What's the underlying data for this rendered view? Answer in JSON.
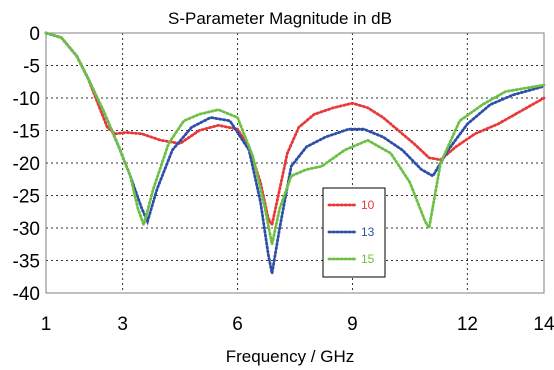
{
  "chart_data": {
    "type": "line",
    "title": "S-Parameter Magnitude in dB",
    "xlabel": "Frequency / GHz",
    "ylabel": "",
    "xlim": [
      1,
      14
    ],
    "ylim": [
      -40,
      0
    ],
    "xticks": [
      1,
      3,
      6,
      9,
      12,
      14
    ],
    "yticks": [
      0,
      -5,
      -10,
      -15,
      -20,
      -25,
      -30,
      -35,
      -40
    ],
    "grid": true,
    "grid_style": "dotted",
    "legend_position": "center-right",
    "series": [
      {
        "name": "10",
        "color": "#e8383a",
        "x": [
          1,
          1.4,
          1.8,
          2.1,
          2.4,
          2.6,
          2.8,
          3.1,
          3.5,
          4.0,
          4.5,
          5.0,
          5.5,
          6.0,
          6.3,
          6.6,
          6.8,
          6.9,
          7.1,
          7.3,
          7.6,
          8.0,
          8.5,
          9.0,
          9.4,
          9.8,
          10.2,
          10.6,
          11.0,
          11.3,
          11.7,
          12.2,
          12.8,
          13.4,
          14.0
        ],
        "y": [
          0,
          -0.7,
          -3.5,
          -7,
          -11.5,
          -14.5,
          -15.5,
          -15.3,
          -15.5,
          -16.5,
          -17,
          -15,
          -14.2,
          -14.8,
          -17.5,
          -23,
          -28.5,
          -29.5,
          -24,
          -18.5,
          -14.5,
          -12.5,
          -11.5,
          -10.8,
          -11.5,
          -13,
          -15,
          -17,
          -19.2,
          -19.5,
          -17.5,
          -15.5,
          -14,
          -12,
          -10
        ]
      },
      {
        "name": "13",
        "color": "#2e4fa8",
        "x": [
          1,
          1.4,
          1.8,
          2.1,
          2.5,
          2.9,
          3.2,
          3.5,
          3.65,
          3.9,
          4.3,
          4.8,
          5.3,
          5.8,
          6.3,
          6.6,
          6.8,
          6.9,
          7.1,
          7.4,
          7.8,
          8.3,
          8.9,
          9.3,
          9.8,
          10.3,
          10.8,
          11.1,
          11.5,
          12.0,
          12.6,
          13.2,
          14.0
        ],
        "y": [
          0,
          -0.7,
          -3.5,
          -7,
          -12,
          -17.5,
          -22,
          -27,
          -29,
          -24,
          -18,
          -14.5,
          -13,
          -13.5,
          -18,
          -26,
          -34,
          -37,
          -30,
          -20.5,
          -17.5,
          -16,
          -14.8,
          -14.8,
          -16,
          -18,
          -21,
          -22,
          -18,
          -14,
          -11,
          -9.5,
          -8.2
        ]
      },
      {
        "name": "15",
        "color": "#6dc043",
        "x": [
          1,
          1.4,
          1.8,
          2.1,
          2.5,
          2.9,
          3.2,
          3.4,
          3.55,
          3.8,
          4.2,
          4.6,
          5.0,
          5.5,
          6.0,
          6.4,
          6.7,
          6.9,
          7.1,
          7.4,
          7.8,
          8.2,
          8.8,
          9.4,
          10.0,
          10.5,
          10.9,
          11.0,
          11.3,
          11.8,
          12.4,
          13.0,
          14.0
        ],
        "y": [
          0,
          -0.7,
          -3.5,
          -7,
          -12,
          -17.5,
          -22,
          -27,
          -29.5,
          -24,
          -17,
          -13.5,
          -12.5,
          -11.8,
          -13,
          -19,
          -26.5,
          -32.5,
          -27,
          -22,
          -21,
          -20.5,
          -18,
          -16.5,
          -18.5,
          -23,
          -29,
          -30,
          -20,
          -13.5,
          -11,
          -9,
          -8
        ]
      }
    ]
  }
}
